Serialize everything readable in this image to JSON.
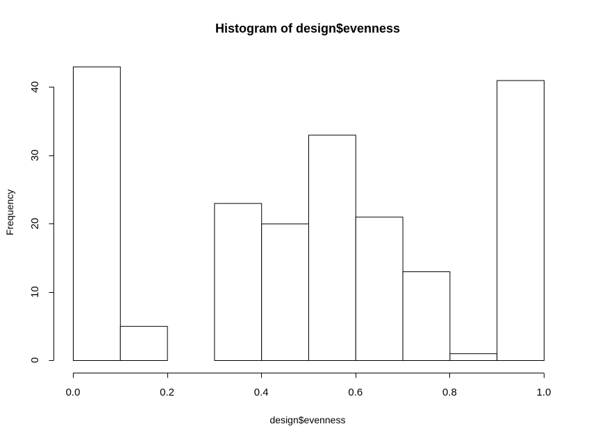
{
  "chart_data": {
    "type": "bar",
    "title": "Histogram of design$evenness",
    "xlabel": "design$evenness",
    "ylabel": "Frequency",
    "bins": [
      {
        "x0": 0.0,
        "x1": 0.1,
        "count": 43
      },
      {
        "x0": 0.1,
        "x1": 0.2,
        "count": 5
      },
      {
        "x0": 0.2,
        "x1": 0.3,
        "count": 0
      },
      {
        "x0": 0.3,
        "x1": 0.4,
        "count": 23
      },
      {
        "x0": 0.4,
        "x1": 0.5,
        "count": 20
      },
      {
        "x0": 0.5,
        "x1": 0.6,
        "count": 33
      },
      {
        "x0": 0.6,
        "x1": 0.7,
        "count": 21
      },
      {
        "x0": 0.7,
        "x1": 0.8,
        "count": 13
      },
      {
        "x0": 0.8,
        "x1": 0.9,
        "count": 1
      },
      {
        "x0": 0.9,
        "x1": 1.0,
        "count": 41
      }
    ],
    "xlim": [
      0.0,
      1.0
    ],
    "ylim": [
      0,
      43
    ],
    "xticks": [
      0.0,
      0.2,
      0.4,
      0.6,
      0.8,
      1.0
    ],
    "xtick_labels": [
      "0.0",
      "0.2",
      "0.4",
      "0.6",
      "0.8",
      "1.0"
    ],
    "yticks": [
      0,
      10,
      20,
      30,
      40
    ],
    "ytick_labels": [
      "0",
      "10",
      "20",
      "30",
      "40"
    ],
    "grid": false,
    "legend": "none"
  }
}
